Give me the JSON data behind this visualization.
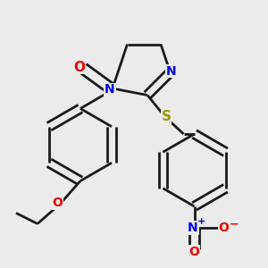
{
  "bg_color": "#ebebeb",
  "bond_color": "#1a1a1a",
  "N_color": "#0000ee",
  "O_color": "#ee0000",
  "S_color": "#999900",
  "bond_width": 2.0,
  "figsize": [
    3.0,
    3.0
  ],
  "dpi": 100,
  "xlim": [
    0.0,
    1.0
  ],
  "ylim": [
    0.0,
    1.0
  ]
}
